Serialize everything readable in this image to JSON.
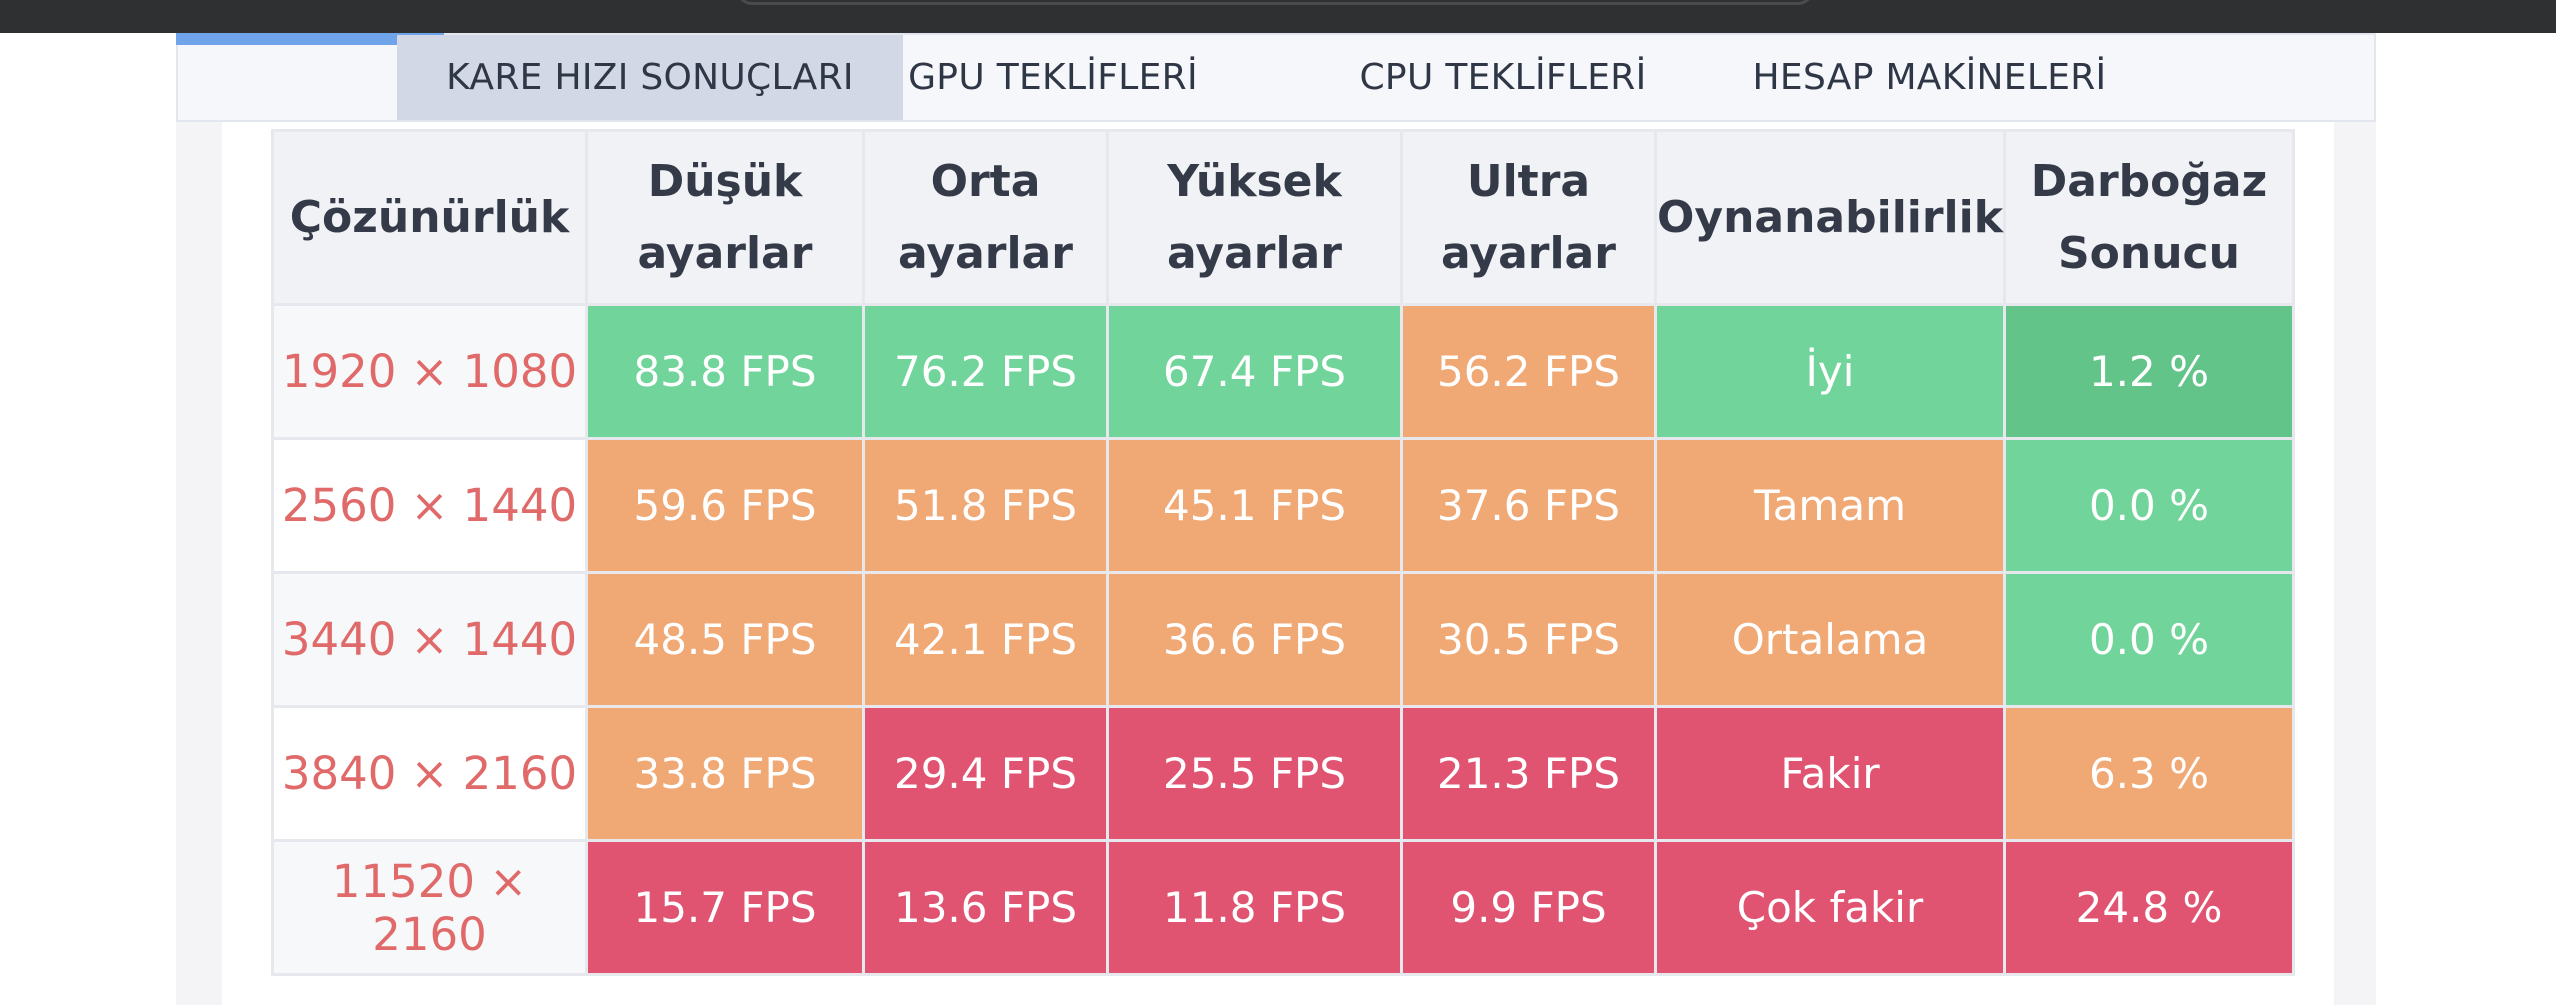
{
  "tabs": [
    {
      "label": "KARE HIZI SONUÇLARI",
      "active": true
    },
    {
      "label": "GPU TEKLİFLERİ",
      "active": false
    },
    {
      "label": "CPU TEKLİFLERİ",
      "active": false
    },
    {
      "label": "HESAP MAKİNELERİ",
      "active": false
    }
  ],
  "table": {
    "headers": {
      "resolution": "Çözünürlük",
      "low": [
        "Düşük",
        "ayarlar"
      ],
      "medium": [
        "Orta",
        "ayarlar"
      ],
      "high": [
        "Yüksek",
        "ayarlar"
      ],
      "ultra": [
        "Ultra",
        "ayarlar"
      ],
      "playability": "Oynanabilirlik",
      "bottleneck": [
        "Darboğaz",
        "Sonucu"
      ]
    },
    "rows": [
      {
        "resolution": "1920 × 1080",
        "low": "83.8 FPS",
        "medium": "76.2 FPS",
        "high": "67.4 FPS",
        "ultra": "56.2 FPS",
        "playability": "İyi",
        "bottleneck": "1.2 %"
      },
      {
        "resolution": "2560 × 1440",
        "low": "59.6 FPS",
        "medium": "51.8 FPS",
        "high": "45.1 FPS",
        "ultra": "37.6 FPS",
        "playability": "Tamam",
        "bottleneck": "0.0 %"
      },
      {
        "resolution": "3440 × 1440",
        "low": "48.5 FPS",
        "medium": "42.1 FPS",
        "high": "36.6 FPS",
        "ultra": "30.5 FPS",
        "playability": "Ortalama",
        "bottleneck": "0.0 %"
      },
      {
        "resolution": "3840 × 2160",
        "low": "33.8 FPS",
        "medium": "29.4 FPS",
        "high": "25.5 FPS",
        "ultra": "21.3 FPS",
        "playability": "Fakir",
        "bottleneck": "6.3 %"
      },
      {
        "resolution": "11520 × 2160",
        "low": "15.7 FPS",
        "medium": "13.6 FPS",
        "high": "11.8 FPS",
        "ultra": "9.9 FPS",
        "playability": "Çok fakir",
        "bottleneck": "24.8 %"
      }
    ]
  },
  "colors": {
    "good": "#71d49b",
    "best": "#62c489",
    "medium": "#f0a874",
    "poor": "#e05472",
    "resolution_text": "#e06a6a",
    "active_tab": "#d2d8e6",
    "progress": "#6fa3ea"
  }
}
